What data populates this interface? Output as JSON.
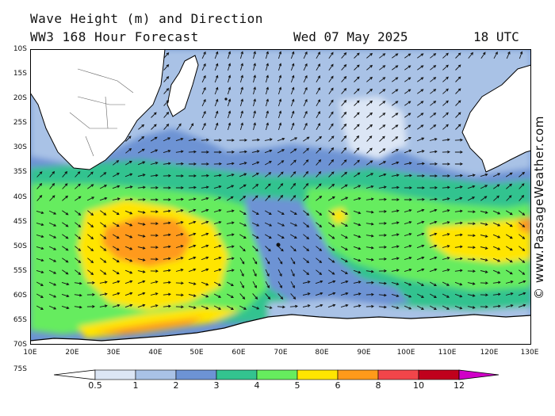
{
  "title_line1": "Wave Height (m) and Direction",
  "title_line2": "WW3 168 Hour Forecast",
  "date": "Wed 07 May 2025",
  "time": "18 UTC",
  "credit": "© www.PassageWeather.com",
  "lat_labels": [
    "10S",
    "15S",
    "20S",
    "25S",
    "30S",
    "35S",
    "40S",
    "45S",
    "50S",
    "55S",
    "60S",
    "65S",
    "70S",
    "75S"
  ],
  "lon_labels": [
    "10E",
    "20E",
    "30E",
    "40E",
    "50E",
    "60E",
    "70E",
    "80E",
    "90E",
    "100E",
    "110E",
    "120E",
    "130E"
  ],
  "legend": {
    "ticks": [
      "0.5",
      "1",
      "2",
      "3",
      "4",
      "5",
      "6",
      "8",
      "10",
      "12"
    ],
    "colors": [
      "#ffffff",
      "#dce6f5",
      "#a9c2e6",
      "#6d93d4",
      "#33c38f",
      "#66ec5e",
      "#ffe500",
      "#ff9a1a",
      "#f2454a",
      "#c0001c",
      "#d000c8"
    ]
  },
  "map_colors": {
    "ocean_0_1": "#dce6f5",
    "ocean_1_2": "#a9c2e6",
    "ocean_2_3": "#6d93d4",
    "ocean_3_4": "#33c38f",
    "ocean_4_5": "#66ec5e",
    "ocean_5_6": "#ffe500",
    "ocean_6_8": "#ff9a1a",
    "land": "#ffffff"
  }
}
